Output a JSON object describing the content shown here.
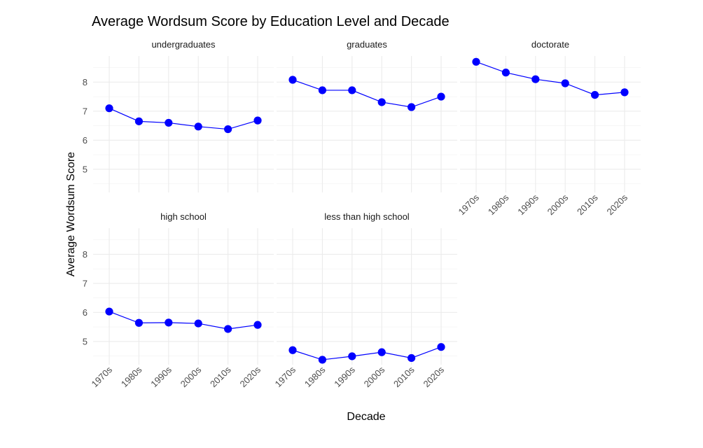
{
  "chart_data": {
    "type": "line",
    "title": "Average Wordsum Score by Education Level and Decade",
    "xlabel": "Decade",
    "ylabel": "Average Wordsum Score",
    "categories": [
      "1970s",
      "1980s",
      "1990s",
      "2000s",
      "2010s",
      "2020s"
    ],
    "y_ticks": [
      5,
      6,
      7,
      8
    ],
    "ylim": [
      4.2,
      8.9
    ],
    "grid": true,
    "marker_color": "#0000ff",
    "line_color": "#0000ff",
    "panels": [
      {
        "name": "undergraduates",
        "values": [
          7.1,
          6.65,
          6.6,
          6.47,
          6.38,
          6.68
        ]
      },
      {
        "name": "graduates",
        "values": [
          8.08,
          7.72,
          7.72,
          7.31,
          7.14,
          7.5
        ]
      },
      {
        "name": "doctorate",
        "values": [
          8.7,
          8.33,
          8.1,
          7.96,
          7.56,
          7.65
        ]
      },
      {
        "name": "high school",
        "values": [
          6.03,
          5.64,
          5.65,
          5.62,
          5.43,
          5.57
        ]
      },
      {
        "name": "less than high school",
        "values": [
          4.7,
          4.37,
          4.49,
          4.63,
          4.43,
          4.81
        ]
      }
    ]
  }
}
